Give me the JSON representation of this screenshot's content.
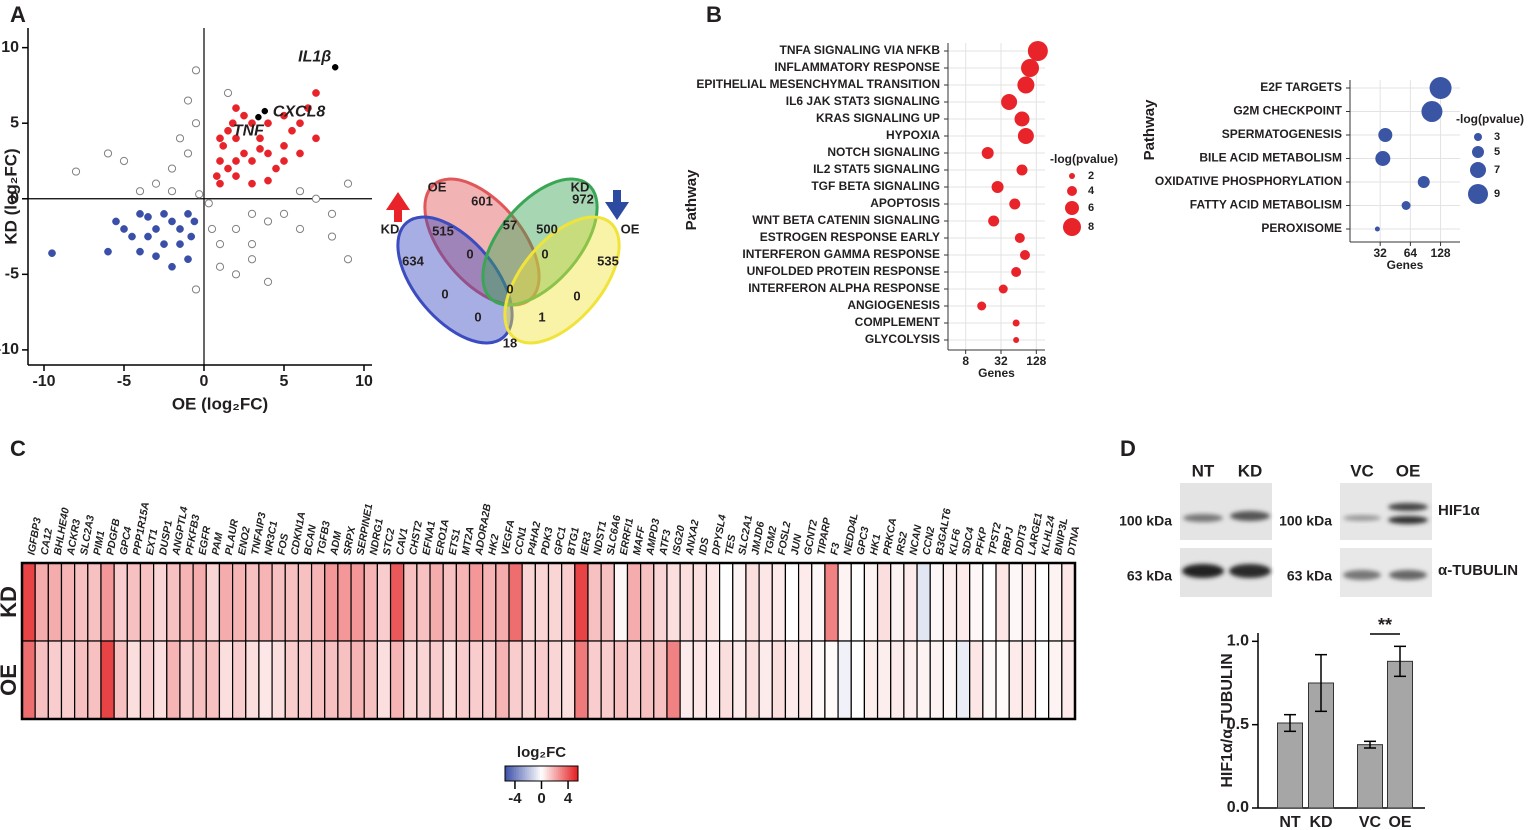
{
  "panels": [
    "A",
    "B",
    "C",
    "D"
  ],
  "chart_data": [
    {
      "type": "scatter",
      "xlabel": "OE (log₂FC)",
      "ylabel": "KD (log₂FC)",
      "xlim": [
        -11,
        10.5
      ],
      "ylim": [
        -11,
        11.3
      ],
      "xticks": [
        -10,
        -5,
        0,
        5,
        10
      ],
      "yticks": [
        -10,
        -5,
        0,
        5,
        10
      ],
      "series": [
        {
          "color": "#808080",
          "hollow": true,
          "x": [
            -2,
            -1,
            -0.5,
            0.5,
            1,
            2,
            3,
            4,
            5,
            6,
            7,
            8,
            9,
            -3,
            -4,
            -5,
            -6,
            -8,
            -1.5,
            1,
            2,
            3,
            0.3,
            -0.3,
            -1,
            1.5,
            -0.5,
            8,
            9,
            3,
            -0.5,
            -2,
            4,
            6
          ],
          "values": [
            2,
            3,
            5,
            -2,
            -3,
            -2,
            -1,
            -1.5,
            -1,
            -2,
            0,
            -1,
            1,
            1,
            0.5,
            2.5,
            3,
            1.8,
            4,
            -4.5,
            -5,
            -3,
            -0.3,
            0.3,
            6.5,
            7,
            8.5,
            -2.5,
            -4,
            -4,
            -6,
            0.5,
            -5.5,
            0.5
          ]
        },
        {
          "color": "#3a4fa8",
          "x": [
            -1,
            -2,
            -3,
            -4,
            -1.5,
            -2.5,
            -3.5,
            -4.5,
            -5,
            -1,
            -2,
            -0.8,
            -3,
            -4,
            -5.5,
            -6,
            -1.5,
            -2.5,
            -9.5,
            -0.6,
            -3.5
          ],
          "values": [
            -1,
            -1.5,
            -2,
            -1,
            -3,
            -3,
            -2.5,
            -2.5,
            -2,
            -4,
            -4.5,
            -2.5,
            -3.8,
            -3.5,
            -1.5,
            -3.5,
            -2,
            -1,
            -3.6,
            -1.5,
            -1.2
          ]
        },
        {
          "color": "#e8242a",
          "x": [
            1,
            1.5,
            2,
            2.5,
            3,
            1.2,
            2,
            3.5,
            4,
            4.5,
            5,
            5.5,
            6,
            6.5,
            7,
            3,
            2.5,
            1.5,
            4,
            5,
            6,
            7,
            1,
            0.8,
            3,
            4,
            2,
            1,
            2,
            5,
            3.5,
            1.8
          ],
          "values": [
            1,
            2,
            1.5,
            3,
            2.5,
            3.5,
            4,
            4,
            3,
            2,
            3.5,
            4.5,
            5,
            6,
            7,
            5,
            5.5,
            4.5,
            5,
            5.5,
            3,
            4,
            2.5,
            1.5,
            1,
            1.2,
            2.5,
            4,
            6,
            2.5,
            3.3,
            5
          ]
        },
        {
          "color": "#000000",
          "x": [
            8.2,
            3.8,
            3.4
          ],
          "values": [
            8.7,
            5.8,
            5.4
          ],
          "labels": [
            "IL1β",
            "CXCL8",
            "TNF"
          ]
        }
      ]
    },
    {
      "type": "venn",
      "set_labels": [
        "OE",
        "KD",
        "KD",
        "OE"
      ],
      "set_colors": [
        "#e15759",
        "#3b4cc0",
        "#3aa655",
        "#f0e43c"
      ],
      "values": [
        601,
        972,
        515,
        57,
        500,
        634,
        0,
        0,
        535,
        0,
        0,
        0,
        0,
        1,
        18
      ]
    },
    {
      "type": "dot",
      "xlabel": "Genes",
      "ylabel": "Pathway",
      "log_x": true,
      "color": "#e8242a",
      "categories": [
        "TNFA SIGNALING VIA NFKB",
        "INFLAMMATORY RESPONSE",
        "EPITHELIAL MESENCHYMAL TRANSITION",
        "IL6 JAK STAT3 SIGNALING",
        "KRAS SIGNALING UP",
        "HYPOXIA",
        "NOTCH SIGNALING",
        "IL2 STAT5 SIGNALING",
        "TGF BETA SIGNALING",
        "APOPTOSIS",
        "WNT BETA CATENIN SIGNALING",
        "ESTROGEN RESPONSE EARLY",
        "INTERFERON GAMMA RESPONSE",
        "UNFOLDED PROTEIN RESPONSE",
        "INTERFERON ALPHA RESPONSE",
        "ANGIOGENESIS",
        "COMPLEMENT",
        "GLYCOLYSIS"
      ],
      "category_colors": [
        "#e8242a",
        "#e8242a",
        "#231f20",
        "#231f20",
        "#231f20",
        "#e8242a",
        "#231f20",
        "#231f20",
        "#231f20",
        "#231f20",
        "#231f20",
        "#231f20",
        "#e8242a",
        "#231f20",
        "#e8242a",
        "#231f20",
        "#231f20",
        "#e8242a"
      ],
      "values": [
        136,
        100,
        85,
        44,
        73,
        85,
        19,
        73,
        28,
        55,
        24,
        67,
        82,
        58,
        35,
        15,
        58,
        58
      ],
      "sizes": [
        9,
        8,
        7.5,
        7,
        6.5,
        7,
        5,
        4.5,
        5,
        4.5,
        4.5,
        4,
        4,
        4,
        3.5,
        3.5,
        2.5,
        2
      ],
      "xlim": [
        4,
        180
      ],
      "xticks": [
        8,
        32,
        128
      ],
      "size_legend_title": "-log(pvalue)",
      "size_legend": [
        2,
        4,
        6,
        8
      ]
    },
    {
      "type": "dot",
      "xlabel": "Genes",
      "ylabel": "Pathway",
      "log_x": true,
      "color": "#3b55a5",
      "categories": [
        "E2F TARGETS",
        "G2M CHECKPOINT",
        "SPERMATOGENESIS",
        "BILE ACID METABOLISM",
        "OXIDATIVE PHOSPHORYLATION",
        "FATTY ACID METABOLISM",
        "PEROXISOME"
      ],
      "values": [
        128,
        105,
        36,
        34,
        87,
        58,
        30
      ],
      "sizes": [
        10,
        9.5,
        6,
        6.5,
        5,
        3.5,
        1.5
      ],
      "xlim": [
        16,
        200
      ],
      "xticks": [
        32,
        64,
        128
      ],
      "size_legend_title": "-log(pvalue)",
      "size_legend": [
        3,
        5,
        7,
        9
      ]
    },
    {
      "type": "heatmap",
      "columns": [
        "IGFBP3",
        "CA12",
        "BHLHE40",
        "ACKR3",
        "SLC2A3",
        "PIM1",
        "PDGFB",
        "GPC4",
        "PPP1R15A",
        "EXT1",
        "DUSP1",
        "ANGPTL4",
        "PFKFB3",
        "EGFR",
        "PAM",
        "PLAUR",
        "ENO2",
        "TNFAIP3",
        "NR3C1",
        "FOS",
        "CDKN1A",
        "BCAN",
        "TGFB3",
        "ADM",
        "SRPX",
        "SERPINE1",
        "NDRG1",
        "STC2",
        "CAV1",
        "CHST2",
        "EFNA1",
        "ERO1A",
        "ETS1",
        "MT2A",
        "ADORA2B",
        "HK2",
        "VEGFA",
        "CCN1",
        "P4HA2",
        "PDK3",
        "GPC1",
        "BTG1",
        "IER3",
        "NDST1",
        "SLC6A6",
        "ERRFI1",
        "MAFF",
        "AMPD3",
        "ATF3",
        "ISG20",
        "ANXA2",
        "IDS",
        "DPYSL4",
        "TES",
        "SLC2A1",
        "JMJD6",
        "TGM2",
        "FOSL2",
        "JUN",
        "GCNT2",
        "TIPARP",
        "F3",
        "NEDD4L",
        "GPC3",
        "HK1",
        "PRKCA",
        "IRS2",
        "NCAN",
        "CCN2",
        "B3GALT6",
        "KLF6",
        "SDC4",
        "PFKP",
        "TPST2",
        "RBPJ",
        "DDIT3",
        "LARGE1",
        "KLHL24",
        "BNIP3L",
        "DTNA"
      ],
      "rows": [
        "KD",
        "OE"
      ],
      "values": [
        [
          4.5,
          2,
          2,
          1.8,
          1.5,
          1.5,
          2.5,
          1.2,
          1.5,
          1.5,
          1,
          1.5,
          1.8,
          2,
          1,
          2,
          1.8,
          1.5,
          1.8,
          1.5,
          1.5,
          1.5,
          1.8,
          2.5,
          2.5,
          2.5,
          1.8,
          1.2,
          4,
          1.5,
          1.5,
          2,
          1.5,
          1.8,
          2.5,
          1.8,
          2,
          3.5,
          1,
          1,
          1,
          1.2,
          4.5,
          1.5,
          1.5,
          0.2,
          2,
          1.5,
          1,
          0.8,
          0.8,
          0.8,
          0.6,
          0,
          0.3,
          0.8,
          0.6,
          0.5,
          0,
          0.5,
          0.2,
          3,
          0.3,
          0,
          0.3,
          0.8,
          0.3,
          0.5,
          -0.8,
          0.2,
          0.4,
          0.5,
          0.2,
          0,
          0.6,
          0.2,
          0.4,
          0,
          0.3,
          0.6
        ],
        [
          3.5,
          1.5,
          1.2,
          1.2,
          1.5,
          1.5,
          4.5,
          1.5,
          0.8,
          1.2,
          0.8,
          1.8,
          1.2,
          1.5,
          1.5,
          0.8,
          1.2,
          0.8,
          0.6,
          0.8,
          1.2,
          1.2,
          1.5,
          1.5,
          1.5,
          1.8,
          1.5,
          0.8,
          1.8,
          1,
          1,
          1.2,
          0.8,
          1.2,
          1.2,
          1.2,
          1.8,
          1.2,
          1,
          1.2,
          1,
          0.8,
          3.2,
          1.2,
          1.2,
          1.5,
          1.2,
          1.5,
          1.5,
          3,
          0.5,
          0.6,
          0.5,
          0.8,
          0.5,
          0.8,
          0.5,
          0.8,
          0.5,
          0.6,
          0.2,
          0.1,
          -0.4,
          0,
          0.4,
          0.4,
          0.5,
          0.4,
          0.3,
          0.3,
          0.2,
          -0.6,
          0.6,
          0.2,
          0.1,
          0.5,
          0.6,
          0,
          0.3,
          0.5
        ]
      ],
      "zlim": [
        -5.5,
        5.5
      ],
      "colorbar_ticks": [
        -4,
        0,
        4
      ],
      "colorbar_title": "log₂FC",
      "colors": [
        "#3a4fa8",
        "#ffffff",
        "#e41a1c"
      ]
    },
    {
      "type": "blot",
      "lanes": [
        "NT",
        "KD",
        "VC",
        "OE"
      ],
      "markers": [
        "100 kDa",
        "63 kDa",
        "100 kDa",
        "63 kDa"
      ],
      "proteins": [
        "HIF1α",
        "α-TUBULIN"
      ]
    },
    {
      "type": "bar",
      "ylabel": "HIF1α/α-TUBULIN",
      "categories": [
        "NT",
        "KD",
        "VC",
        "OE"
      ],
      "values": [
        0.51,
        0.75,
        0.38,
        0.88
      ],
      "errors": [
        0.05,
        0.17,
        0.02,
        0.09
      ],
      "color": "#a6a6a6",
      "ylim": [
        0,
        1.05
      ],
      "yticks": [
        {
          "value": 0,
          "label": "0.0"
        },
        {
          "value": 0.5,
          "label": "0.5"
        },
        {
          "value": 1,
          "label": "1.0"
        }
      ],
      "annotation": "**"
    }
  ]
}
